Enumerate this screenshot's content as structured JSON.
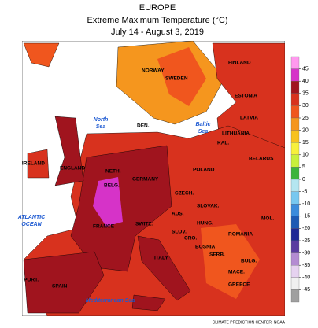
{
  "header": {
    "region": "EUROPE",
    "title": "Extreme Maximum Temperature (°C)",
    "period": "July 14 - August 3, 2019"
  },
  "legend": {
    "ticks": [
      45,
      40,
      35,
      30,
      25,
      20,
      15,
      10,
      5,
      0,
      -5,
      -10,
      -15,
      -20,
      -25,
      -30,
      -35,
      -40,
      -45
    ],
    "colors": [
      "#ff99ee",
      "#d633c8",
      "#a0141e",
      "#d8321e",
      "#f0561e",
      "#f5961e",
      "#f7c21e",
      "#f7f03c",
      "#c8f03c",
      "#3cb43c",
      "#b4e6f0",
      "#78c8f0",
      "#3c8cdc",
      "#1e5ab4",
      "#1e2896",
      "#5a3ca0",
      "#b48cd2",
      "#e6d2f0",
      "#f0f0f0",
      "#a0a0a0"
    ]
  },
  "countries": [
    "NORWAY",
    "SWEDEN",
    "FINLAND",
    "ESTONIA",
    "LATVIA",
    "LITHUANIA",
    "KAL.",
    "BELARUS",
    "DEN.",
    "IRELAND",
    "ENGLAND",
    "NETH.",
    "BELG.",
    "GERMANY",
    "POLAND",
    "CZECH.",
    "SLOVAK.",
    "AUS.",
    "HUNG.",
    "MOL.",
    "SWITZ.",
    "SLOV.",
    "CRO.",
    "BOSNIA",
    "SERB.",
    "ROMANIA",
    "FRANCE",
    "ITALY",
    "SPAIN",
    "PORT.",
    "MACE.",
    "BULG.",
    "GREECE"
  ],
  "seas": {
    "north_sea": [
      "North",
      "Sea"
    ],
    "baltic_sea": [
      "Baltic",
      "Sea"
    ],
    "atlantic": [
      "ATLANTIC",
      "OCEAN"
    ],
    "mediterranean": "Mediterranean Sea"
  },
  "credit": "CLIMATE PREDICTION CENTER, NOAA"
}
